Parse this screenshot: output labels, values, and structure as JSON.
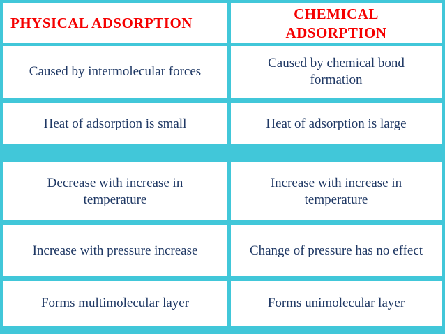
{
  "colors": {
    "background_cyan": "#41c7d9",
    "cell_background": "#ffffff",
    "header_text": "#f50000",
    "body_text": "#1f3864"
  },
  "table": {
    "headers": {
      "left": "PHYSICAL  ADSORPTION",
      "right": "CHEMICAL\nADSORPTION"
    },
    "rows": [
      {
        "left": "Caused by intermolecular forces",
        "right": "Caused by chemical bond\nformation"
      },
      {
        "left": "Heat of adsorption is small",
        "right": "Heat of adsorption is large"
      },
      {
        "left": "Decrease with increase in\ntemperature",
        "right": "Increase with increase in\ntemperature"
      },
      {
        "left": "Increase with pressure increase",
        "right": "Change of pressure has no effect"
      },
      {
        "left": "Forms multimolecular  layer",
        "right": "Forms unimolecular layer"
      }
    ]
  }
}
